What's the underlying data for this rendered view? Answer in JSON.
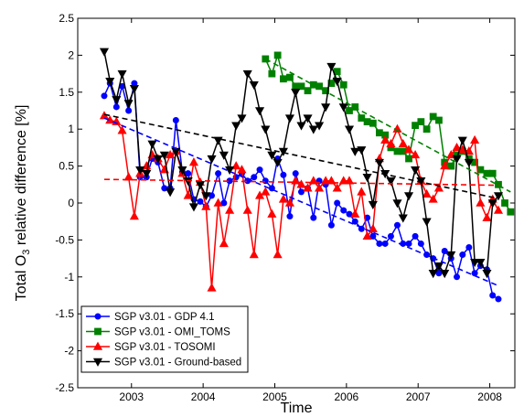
{
  "chart_data": {
    "type": "line",
    "title": "",
    "xlabel": "Time",
    "ylabel_main": "Total O",
    "ylabel_sub": "3",
    "ylabel_rest": " relative difference [%]",
    "xlim": [
      2002.25,
      2008.35
    ],
    "ylim": [
      -2.5,
      2.5
    ],
    "xticks": [
      2003,
      2004,
      2005,
      2006,
      2007,
      2008
    ],
    "xtick_labels": [
      "2003",
      "2004",
      "2005",
      "2006",
      "2007",
      "2008"
    ],
    "yticks": [
      -2.5,
      -2,
      -1.5,
      -1,
      -0.5,
      0,
      0.5,
      1,
      1.5,
      2,
      2.5
    ],
    "ytick_labels": [
      "-2.5",
      "-2",
      "-1.5",
      "-1",
      "-0.5",
      "0",
      "0.5",
      "1",
      "1.5",
      "2",
      "2.5"
    ],
    "grid": false,
    "legend_position": "bottom-left",
    "series": [
      {
        "name": "SGP v3.01 - GDP 4.1",
        "color": "#0000ff",
        "marker": "circle",
        "x": [
          2002.62,
          2002.7,
          2002.79,
          2002.87,
          2002.96,
          2003.04,
          2003.12,
          2003.21,
          2003.29,
          2003.37,
          2003.46,
          2003.54,
          2003.62,
          2003.71,
          2003.79,
          2003.87,
          2003.96,
          2004.04,
          2004.12,
          2004.21,
          2004.29,
          2004.37,
          2004.46,
          2004.54,
          2004.62,
          2004.71,
          2004.79,
          2004.87,
          2004.96,
          2005.04,
          2005.12,
          2005.21,
          2005.29,
          2005.37,
          2005.46,
          2005.54,
          2005.62,
          2005.71,
          2005.79,
          2005.87,
          2005.96,
          2006.04,
          2006.12,
          2006.21,
          2006.29,
          2006.37,
          2006.46,
          2006.54,
          2006.62,
          2006.71,
          2006.79,
          2006.87,
          2006.96,
          2007.04,
          2007.12,
          2007.21,
          2007.29,
          2007.37,
          2007.46,
          2007.54,
          2007.62,
          2007.71,
          2007.79,
          2007.87,
          2007.96,
          2008.04,
          2008.12
        ],
        "y": [
          1.45,
          1.62,
          1.3,
          1.58,
          1.25,
          1.62,
          0.35,
          0.35,
          0.6,
          0.55,
          0.2,
          0.2,
          1.12,
          0.42,
          0.4,
          0.05,
          0.02,
          -0.05,
          0.1,
          0.4,
          0.0,
          0.3,
          0.35,
          0.4,
          0.3,
          0.35,
          0.45,
          0.3,
          0.2,
          0.6,
          0.38,
          -0.18,
          0.4,
          0.15,
          0.2,
          -0.2,
          0.3,
          0.25,
          -0.3,
          0.0,
          -0.1,
          -0.15,
          -0.25,
          -0.35,
          -0.2,
          -0.45,
          -0.55,
          -0.55,
          -0.45,
          -0.3,
          -0.55,
          -0.55,
          -0.45,
          -0.55,
          -0.7,
          -0.75,
          -0.95,
          -0.65,
          -0.75,
          -1.0,
          -0.7,
          -0.6,
          -0.95,
          -0.85,
          -0.9,
          -1.25,
          -1.3
        ]
      },
      {
        "name": "SGP v3.01 - OMI_TOMS",
        "color": "#008000",
        "marker": "square",
        "x": [
          2004.87,
          2004.96,
          2005.04,
          2005.12,
          2005.21,
          2005.29,
          2005.37,
          2005.46,
          2005.54,
          2005.62,
          2005.71,
          2005.79,
          2005.87,
          2005.96,
          2006.04,
          2006.12,
          2006.21,
          2006.29,
          2006.37,
          2006.46,
          2006.54,
          2006.62,
          2006.71,
          2006.79,
          2006.87,
          2006.96,
          2007.04,
          2007.12,
          2007.21,
          2007.29,
          2007.37,
          2007.46,
          2007.54,
          2007.62,
          2007.71,
          2007.79,
          2007.87,
          2007.96,
          2008.04,
          2008.12,
          2008.21,
          2008.29
        ],
        "y": [
          1.95,
          1.75,
          2.0,
          1.68,
          1.7,
          1.58,
          1.58,
          1.52,
          1.6,
          1.58,
          1.52,
          1.62,
          1.78,
          1.6,
          1.25,
          1.3,
          1.15,
          1.1,
          1.08,
          0.95,
          0.92,
          0.75,
          0.7,
          0.7,
          0.6,
          1.05,
          1.1,
          1.0,
          1.17,
          1.12,
          0.55,
          0.5,
          0.65,
          0.7,
          0.6,
          0.55,
          0.45,
          0.4,
          0.4,
          0.25,
          0.0,
          -0.12
        ]
      },
      {
        "name": "SGP v3.01 - TOSOMI",
        "color": "#ff0000",
        "marker": "triangle-up",
        "x": [
          2002.62,
          2002.7,
          2002.79,
          2002.87,
          2002.96,
          2003.04,
          2003.12,
          2003.21,
          2003.29,
          2003.37,
          2003.46,
          2003.54,
          2003.62,
          2003.71,
          2003.79,
          2003.87,
          2003.96,
          2004.04,
          2004.12,
          2004.21,
          2004.29,
          2004.37,
          2004.46,
          2004.54,
          2004.62,
          2004.71,
          2004.79,
          2004.87,
          2004.96,
          2005.04,
          2005.12,
          2005.21,
          2005.29,
          2005.37,
          2005.46,
          2005.54,
          2005.62,
          2005.71,
          2005.79,
          2005.87,
          2005.96,
          2006.04,
          2006.12,
          2006.21,
          2006.29,
          2006.37,
          2006.46,
          2006.54,
          2006.62,
          2006.71,
          2006.79,
          2006.87,
          2006.96,
          2007.04,
          2007.12,
          2007.21,
          2007.29,
          2007.37,
          2007.46,
          2007.54,
          2007.62,
          2007.71,
          2007.79,
          2007.87,
          2007.96,
          2008.04,
          2008.12
        ],
        "y": [
          1.18,
          1.12,
          1.1,
          0.98,
          0.35,
          -0.18,
          0.4,
          0.5,
          0.65,
          0.6,
          0.45,
          0.65,
          0.7,
          0.4,
          0.1,
          0.55,
          0.28,
          -0.05,
          -1.15,
          0.0,
          -0.55,
          -0.1,
          0.5,
          0.45,
          -0.1,
          -0.7,
          0.1,
          0.15,
          -0.15,
          -0.7,
          0.05,
          0.0,
          0.3,
          0.25,
          0.2,
          0.3,
          0.2,
          0.3,
          0.3,
          0.2,
          0.3,
          0.3,
          -0.15,
          0.15,
          -0.45,
          -0.35,
          0.6,
          0.85,
          0.8,
          1.0,
          0.8,
          0.72,
          0.65,
          0.3,
          0.12,
          0.05,
          0.2,
          0.5,
          0.65,
          0.75,
          0.72,
          0.7,
          0.85,
          0.0,
          -0.2,
          0.05,
          -0.1
        ]
      },
      {
        "name": "SGP v3.01 - Ground-based",
        "color": "#000000",
        "marker": "triangle-down",
        "x": [
          2002.62,
          2002.7,
          2002.79,
          2002.87,
          2002.96,
          2003.04,
          2003.12,
          2003.21,
          2003.29,
          2003.37,
          2003.46,
          2003.54,
          2003.62,
          2003.71,
          2003.79,
          2003.87,
          2003.96,
          2004.04,
          2004.12,
          2004.21,
          2004.29,
          2004.37,
          2004.46,
          2004.54,
          2004.62,
          2004.71,
          2004.79,
          2004.87,
          2004.96,
          2005.04,
          2005.12,
          2005.21,
          2005.29,
          2005.37,
          2005.46,
          2005.54,
          2005.62,
          2005.71,
          2005.79,
          2005.87,
          2005.96,
          2006.04,
          2006.12,
          2006.21,
          2006.29,
          2006.37,
          2006.46,
          2006.54,
          2006.62,
          2006.71,
          2006.79,
          2006.87,
          2006.96,
          2007.04,
          2007.12,
          2007.21,
          2007.29,
          2007.37,
          2007.46,
          2007.54,
          2007.62,
          2007.71,
          2007.79,
          2007.87,
          2007.96,
          2008.04,
          2008.12
        ],
        "y": [
          2.05,
          1.65,
          1.4,
          1.75,
          1.35,
          1.55,
          0.45,
          0.4,
          0.8,
          0.6,
          0.65,
          0.15,
          0.7,
          0.45,
          0.3,
          -0.05,
          0.25,
          0.1,
          0.6,
          0.85,
          0.65,
          0.45,
          1.05,
          1.15,
          1.75,
          1.6,
          1.25,
          1.0,
          0.65,
          0.55,
          0.7,
          1.15,
          1.5,
          1.05,
          1.15,
          1.0,
          1.05,
          1.3,
          1.85,
          1.65,
          1.3,
          1.0,
          0.7,
          0.72,
          0.35,
          -0.02,
          0.55,
          0.4,
          0.3,
          0.0,
          -0.2,
          0.1,
          0.45,
          0.3,
          -0.25,
          -0.95,
          -0.85,
          -0.95,
          -0.7,
          0.6,
          0.85,
          0.55,
          -0.8,
          -0.8,
          -0.95,
          0.0,
          0.1
        ]
      }
    ],
    "trend_lines": [
      {
        "series": "SGP v3.01 - GDP 4.1",
        "color": "#0000ff",
        "x": [
          2002.62,
          2008.12
        ],
        "y": [
          1.15,
          -1.12
        ]
      },
      {
        "series": "SGP v3.01 - OMI_TOMS",
        "color": "#008000",
        "x": [
          2004.87,
          2008.29
        ],
        "y": [
          1.95,
          0.15
        ]
      },
      {
        "series": "SGP v3.01 - TOSOMI",
        "color": "#ff0000",
        "x": [
          2002.62,
          2008.12
        ],
        "y": [
          0.32,
          0.24
        ]
      },
      {
        "series": "SGP v3.01 - Ground-based",
        "color": "#000000",
        "x": [
          2002.62,
          2008.12
        ],
        "y": [
          1.2,
          0.06
        ]
      }
    ]
  }
}
